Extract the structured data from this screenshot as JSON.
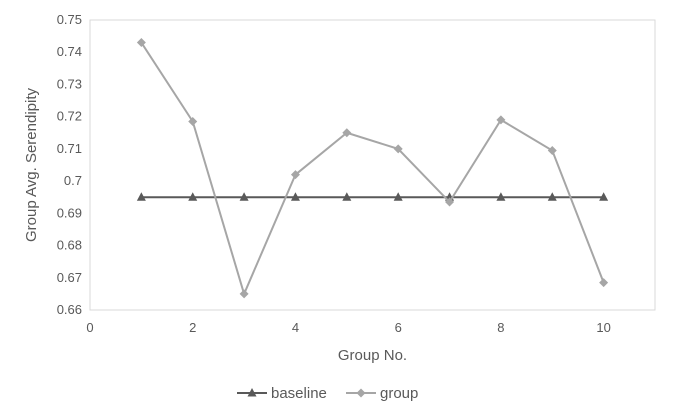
{
  "chart_data": {
    "type": "line",
    "title": "",
    "xlabel": "Group No.",
    "ylabel": "Group Avg. Serendipity",
    "xlim": [
      0,
      11
    ],
    "ylim": [
      0.66,
      0.75
    ],
    "x_ticks": [
      0,
      2,
      4,
      6,
      8,
      10
    ],
    "y_ticks": [
      0.66,
      0.67,
      0.68,
      0.69,
      0.7,
      0.71,
      0.72,
      0.73,
      0.74,
      0.75
    ],
    "y_tick_labels": [
      "0.66",
      "0.67",
      "0.68",
      "0.69",
      "0.7",
      "0.71",
      "0.72",
      "0.73",
      "0.74",
      "0.75"
    ],
    "grid": false,
    "legend_position": "bottom",
    "series": [
      {
        "name": "baseline",
        "marker": "triangle",
        "color": "#595959",
        "x": [
          1,
          2,
          3,
          4,
          5,
          6,
          7,
          8,
          9,
          10
        ],
        "y": [
          0.695,
          0.695,
          0.695,
          0.695,
          0.695,
          0.695,
          0.695,
          0.695,
          0.695,
          0.695
        ]
      },
      {
        "name": "group",
        "marker": "diamond",
        "color": "#a6a6a6",
        "x": [
          1,
          2,
          3,
          4,
          5,
          6,
          7,
          8,
          9,
          10
        ],
        "y": [
          0.743,
          0.7185,
          0.665,
          0.702,
          0.715,
          0.71,
          0.6935,
          0.719,
          0.7095,
          0.6685
        ]
      }
    ]
  }
}
